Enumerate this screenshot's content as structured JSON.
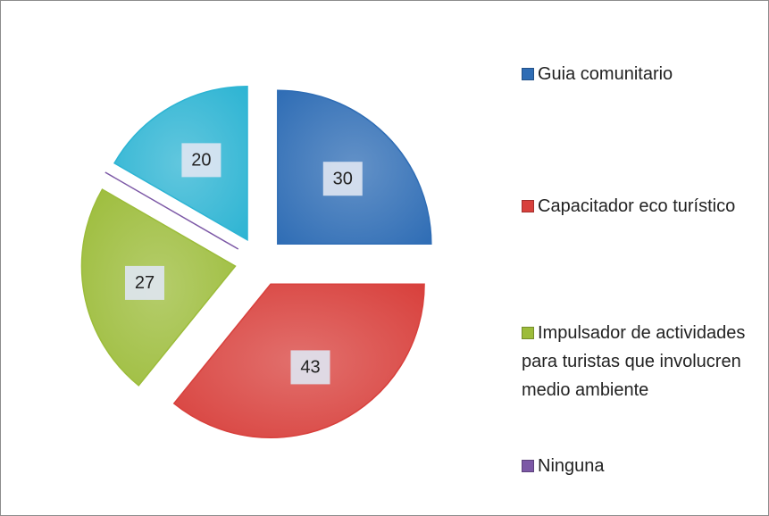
{
  "chart_data": {
    "type": "pie",
    "categories": [
      "Guia comunitario",
      "Capacitador eco turístico",
      "Impulsador de actividades para turistas que involucren medio ambiente",
      "Ninguna",
      null
    ],
    "values": [
      30,
      43,
      27,
      0,
      20
    ],
    "colors": [
      "#2f6db5",
      "#d8403c",
      "#9cbc3a",
      "#7c58a6",
      "#2db4d3"
    ],
    "legend": "right"
  }
}
